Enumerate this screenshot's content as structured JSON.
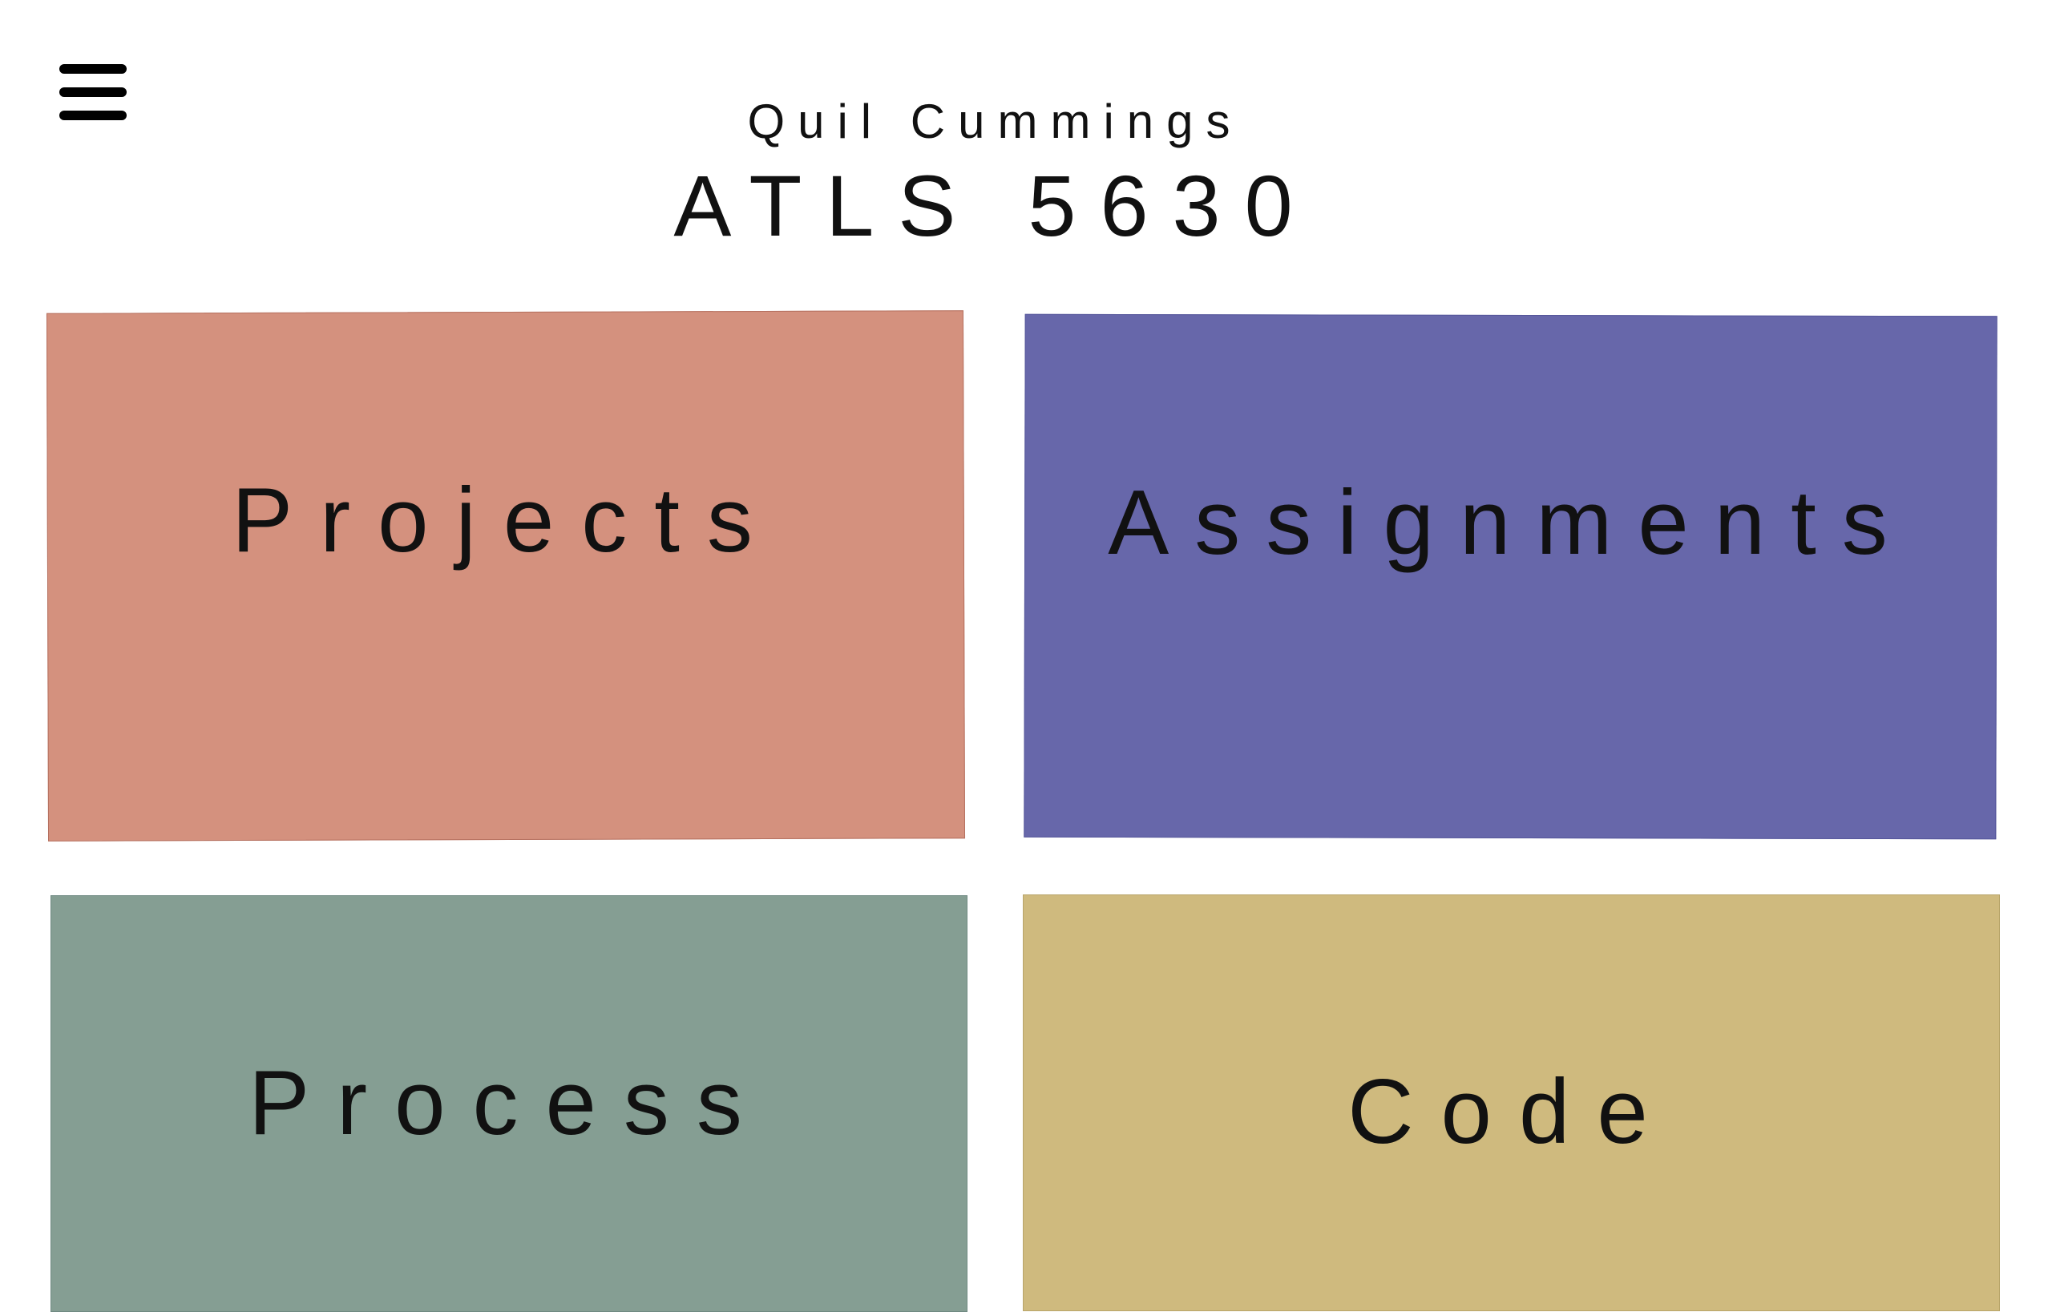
{
  "header": {
    "author": "Quil Cummings",
    "course": "ATLS 5630"
  },
  "menu": {
    "icon": "hamburger-menu-icon"
  },
  "tiles": [
    {
      "label": "Projects",
      "color": "#d4917e"
    },
    {
      "label": "Assignments",
      "color": "#6767aa"
    },
    {
      "label": "Process",
      "color": "#859e93"
    },
    {
      "label": "Code",
      "color": "#cfba7e"
    }
  ]
}
